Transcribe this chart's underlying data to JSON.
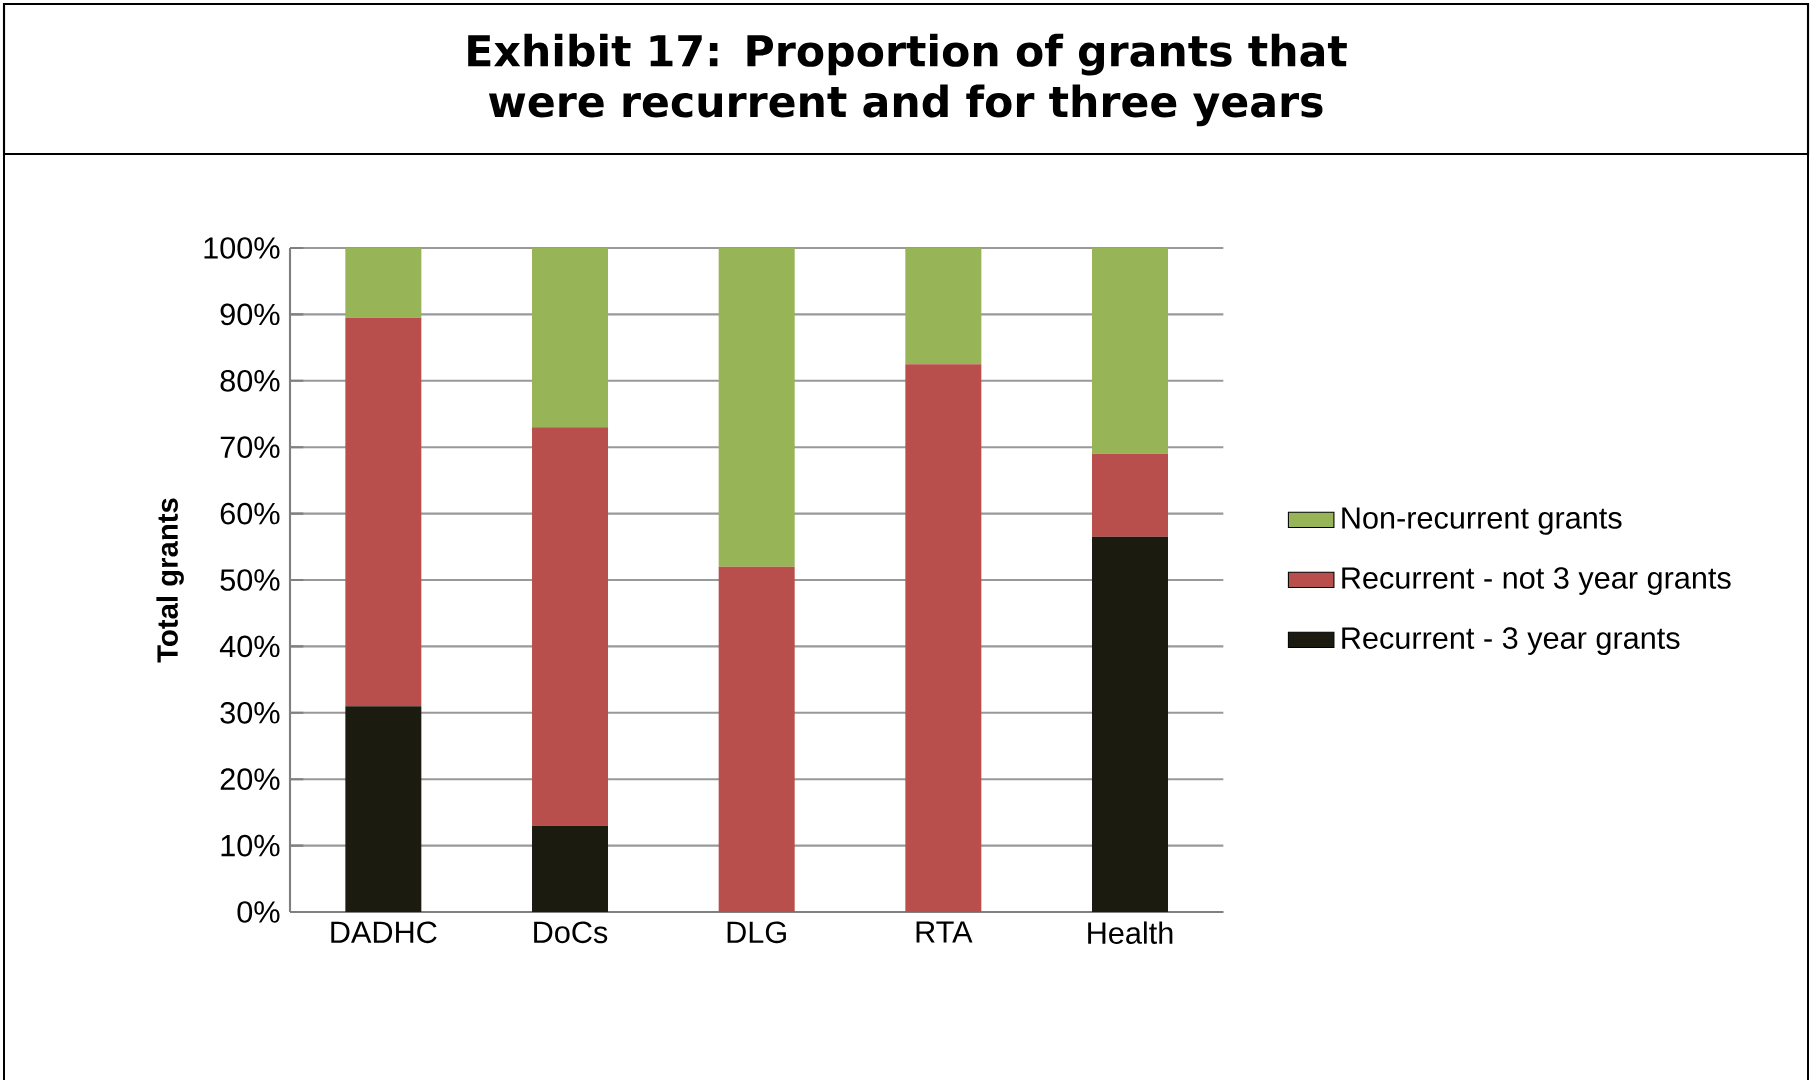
{
  "chart_data": {
    "type": "bar",
    "stacked": true,
    "title": "Exhibit 17: Proportion of grants that were recurrent and for three years",
    "ylabel": "Total grants",
    "categories": [
      "DADHC",
      "DoCs",
      "DLG",
      "RTA",
      "Health"
    ],
    "series": [
      {
        "name": "Recurrent - 3 year grants",
        "color": "#1c1b10",
        "values": [
          31,
          13,
          0,
          0,
          56.5
        ]
      },
      {
        "name": "Recurrent - not 3 year grants",
        "color": "#b94f4d",
        "values": [
          58.5,
          60,
          52,
          82.5,
          12.5
        ]
      },
      {
        "name": "Non-recurrent grants",
        "color": "#97b457",
        "values": [
          10.5,
          27,
          48,
          17.5,
          31
        ]
      }
    ],
    "ylim": [
      0,
      100
    ],
    "yticks": [
      {
        "value": 0,
        "label": "0%"
      },
      {
        "value": 10,
        "label": "10%"
      },
      {
        "value": 20,
        "label": "20%"
      },
      {
        "value": 30,
        "label": "30%"
      },
      {
        "value": 40,
        "label": "40%"
      },
      {
        "value": 50,
        "label": "50%"
      },
      {
        "value": 60,
        "label": "60%"
      },
      {
        "value": 70,
        "label": "70%"
      },
      {
        "value": 80,
        "label": "80%"
      },
      {
        "value": 90,
        "label": "90%"
      },
      {
        "value": 100,
        "label": "100%"
      }
    ],
    "grid": "y",
    "legend": "right"
  }
}
